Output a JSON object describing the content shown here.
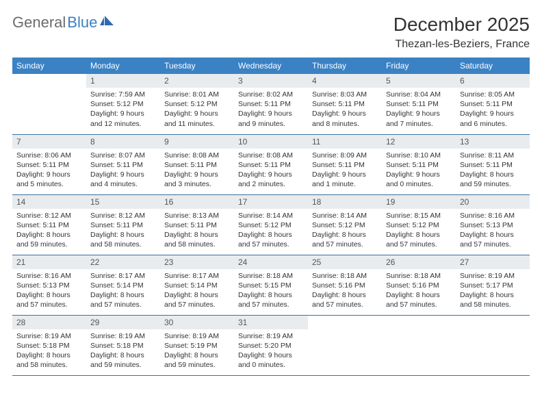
{
  "logo": {
    "part1": "General",
    "part2": "Blue"
  },
  "title": "December 2025",
  "location": "Thezan-les-Beziers, France",
  "colors": {
    "header_bg": "#3b82c4",
    "header_text": "#ffffff",
    "daynum_bg": "#e8ecef",
    "border": "#3b6fa0",
    "logo_gray": "#6b6b6b",
    "logo_blue": "#3b7fc4"
  },
  "weekdays": [
    "Sunday",
    "Monday",
    "Tuesday",
    "Wednesday",
    "Thursday",
    "Friday",
    "Saturday"
  ],
  "weeks": [
    [
      {
        "n": "",
        "t": ""
      },
      {
        "n": "1",
        "t": "Sunrise: 7:59 AM\nSunset: 5:12 PM\nDaylight: 9 hours and 12 minutes."
      },
      {
        "n": "2",
        "t": "Sunrise: 8:01 AM\nSunset: 5:12 PM\nDaylight: 9 hours and 11 minutes."
      },
      {
        "n": "3",
        "t": "Sunrise: 8:02 AM\nSunset: 5:11 PM\nDaylight: 9 hours and 9 minutes."
      },
      {
        "n": "4",
        "t": "Sunrise: 8:03 AM\nSunset: 5:11 PM\nDaylight: 9 hours and 8 minutes."
      },
      {
        "n": "5",
        "t": "Sunrise: 8:04 AM\nSunset: 5:11 PM\nDaylight: 9 hours and 7 minutes."
      },
      {
        "n": "6",
        "t": "Sunrise: 8:05 AM\nSunset: 5:11 PM\nDaylight: 9 hours and 6 minutes."
      }
    ],
    [
      {
        "n": "7",
        "t": "Sunrise: 8:06 AM\nSunset: 5:11 PM\nDaylight: 9 hours and 5 minutes."
      },
      {
        "n": "8",
        "t": "Sunrise: 8:07 AM\nSunset: 5:11 PM\nDaylight: 9 hours and 4 minutes."
      },
      {
        "n": "9",
        "t": "Sunrise: 8:08 AM\nSunset: 5:11 PM\nDaylight: 9 hours and 3 minutes."
      },
      {
        "n": "10",
        "t": "Sunrise: 8:08 AM\nSunset: 5:11 PM\nDaylight: 9 hours and 2 minutes."
      },
      {
        "n": "11",
        "t": "Sunrise: 8:09 AM\nSunset: 5:11 PM\nDaylight: 9 hours and 1 minute."
      },
      {
        "n": "12",
        "t": "Sunrise: 8:10 AM\nSunset: 5:11 PM\nDaylight: 9 hours and 0 minutes."
      },
      {
        "n": "13",
        "t": "Sunrise: 8:11 AM\nSunset: 5:11 PM\nDaylight: 8 hours and 59 minutes."
      }
    ],
    [
      {
        "n": "14",
        "t": "Sunrise: 8:12 AM\nSunset: 5:11 PM\nDaylight: 8 hours and 59 minutes."
      },
      {
        "n": "15",
        "t": "Sunrise: 8:12 AM\nSunset: 5:11 PM\nDaylight: 8 hours and 58 minutes."
      },
      {
        "n": "16",
        "t": "Sunrise: 8:13 AM\nSunset: 5:11 PM\nDaylight: 8 hours and 58 minutes."
      },
      {
        "n": "17",
        "t": "Sunrise: 8:14 AM\nSunset: 5:12 PM\nDaylight: 8 hours and 57 minutes."
      },
      {
        "n": "18",
        "t": "Sunrise: 8:14 AM\nSunset: 5:12 PM\nDaylight: 8 hours and 57 minutes."
      },
      {
        "n": "19",
        "t": "Sunrise: 8:15 AM\nSunset: 5:12 PM\nDaylight: 8 hours and 57 minutes."
      },
      {
        "n": "20",
        "t": "Sunrise: 8:16 AM\nSunset: 5:13 PM\nDaylight: 8 hours and 57 minutes."
      }
    ],
    [
      {
        "n": "21",
        "t": "Sunrise: 8:16 AM\nSunset: 5:13 PM\nDaylight: 8 hours and 57 minutes."
      },
      {
        "n": "22",
        "t": "Sunrise: 8:17 AM\nSunset: 5:14 PM\nDaylight: 8 hours and 57 minutes."
      },
      {
        "n": "23",
        "t": "Sunrise: 8:17 AM\nSunset: 5:14 PM\nDaylight: 8 hours and 57 minutes."
      },
      {
        "n": "24",
        "t": "Sunrise: 8:18 AM\nSunset: 5:15 PM\nDaylight: 8 hours and 57 minutes."
      },
      {
        "n": "25",
        "t": "Sunrise: 8:18 AM\nSunset: 5:16 PM\nDaylight: 8 hours and 57 minutes."
      },
      {
        "n": "26",
        "t": "Sunrise: 8:18 AM\nSunset: 5:16 PM\nDaylight: 8 hours and 57 minutes."
      },
      {
        "n": "27",
        "t": "Sunrise: 8:19 AM\nSunset: 5:17 PM\nDaylight: 8 hours and 58 minutes."
      }
    ],
    [
      {
        "n": "28",
        "t": "Sunrise: 8:19 AM\nSunset: 5:18 PM\nDaylight: 8 hours and 58 minutes."
      },
      {
        "n": "29",
        "t": "Sunrise: 8:19 AM\nSunset: 5:18 PM\nDaylight: 8 hours and 59 minutes."
      },
      {
        "n": "30",
        "t": "Sunrise: 8:19 AM\nSunset: 5:19 PM\nDaylight: 8 hours and 59 minutes."
      },
      {
        "n": "31",
        "t": "Sunrise: 8:19 AM\nSunset: 5:20 PM\nDaylight: 9 hours and 0 minutes."
      },
      {
        "n": "",
        "t": ""
      },
      {
        "n": "",
        "t": ""
      },
      {
        "n": "",
        "t": ""
      }
    ]
  ]
}
